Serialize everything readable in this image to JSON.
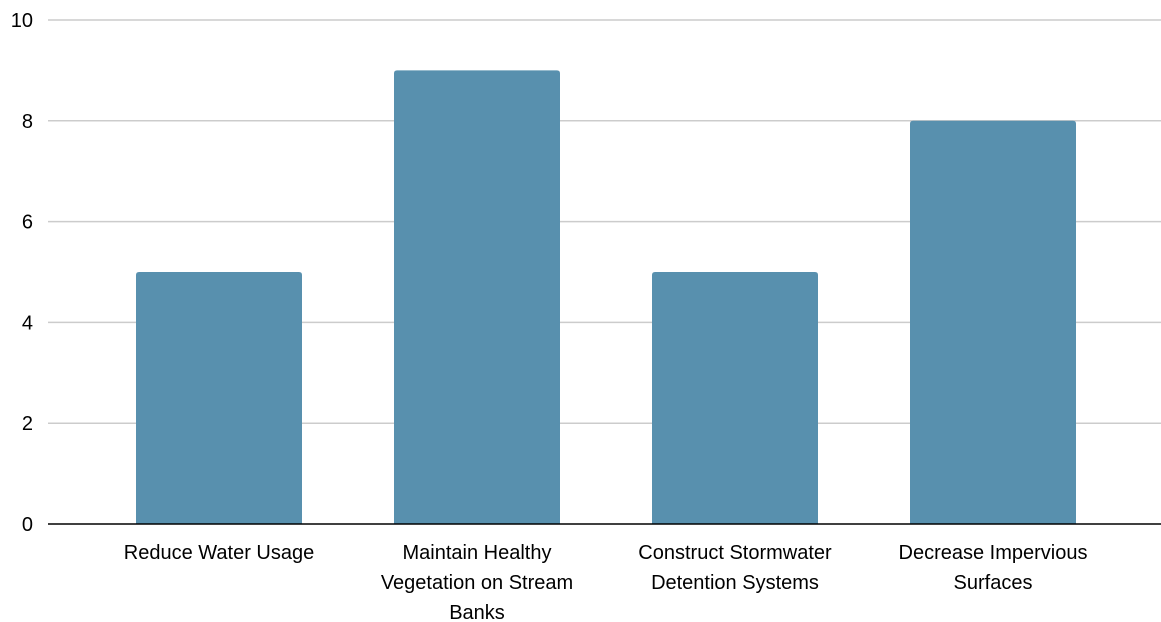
{
  "chart_data": {
    "type": "bar",
    "categories": [
      "Reduce Water Usage",
      "Maintain Healthy Vegetation on Stream Banks",
      "Construct Stormwater Detention Systems",
      "Decrease Impervious Surfaces"
    ],
    "category_label_lines": [
      [
        "Reduce Water Usage"
      ],
      [
        "Maintain Healthy",
        "Vegetation on Stream",
        "Banks"
      ],
      [
        "Construct Stormwater",
        "Detention Systems"
      ],
      [
        "Decrease Impervious",
        "Surfaces"
      ]
    ],
    "values": [
      5,
      9,
      5,
      8
    ],
    "title": "",
    "xlabel": "",
    "ylabel": "",
    "ylim": [
      0,
      10
    ],
    "yticks": [
      0,
      2,
      4,
      6,
      8,
      10
    ],
    "grid": true,
    "legend": "none",
    "bar_color": "#5890ae"
  }
}
